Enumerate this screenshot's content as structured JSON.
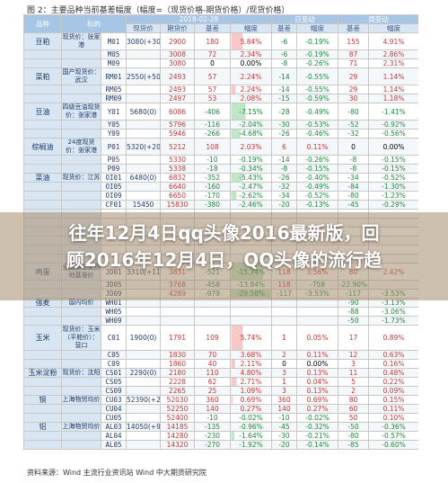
{
  "caption": "图 2：主要品种当前基差幅度（幅度=（现货价格-期货价格）/现货价格）",
  "headers": {
    "variety": "品种",
    "label": "标的",
    "date": "2018-02-28",
    "daily": "日变动",
    "weekly": "周变动",
    "spot": "现货价",
    "futures": "期货价",
    "basis": "基差",
    "amplitude": "幅度"
  },
  "rows": [
    {
      "cat": "豆粕",
      "desc": "现货价：张家港",
      "code": "M01",
      "spot": "3080",
      "spot_chg": "(+30)",
      "fut": "2900",
      "basis": "180",
      "amp": "5.84%",
      "dbasis": "-6",
      "damp": "-0.19%",
      "wbasis": "155",
      "wamp": "4.91%"
    },
    {
      "cat": "",
      "desc": "",
      "code": "M05",
      "spot": "",
      "spot_chg": "",
      "fut": "3008",
      "basis": "72",
      "amp": "2.34%",
      "dbasis": "-6",
      "damp": "-0.19%",
      "wbasis": "87",
      "wamp": "2.86%"
    },
    {
      "cat": "",
      "desc": "",
      "code": "M09",
      "spot": "",
      "spot_chg": "",
      "fut": "3080",
      "basis": "0",
      "amp": "0.00%",
      "dbasis": "-8",
      "damp": "-0.26%",
      "wbasis": "71",
      "wamp": "2.31%"
    },
    {
      "cat": "菜粕",
      "desc": "国产现货价：武汉",
      "code": "RM01",
      "spot": "2550",
      "spot_chg": "(+50)",
      "fut": "2493",
      "basis": "57",
      "amp": "2.24%",
      "dbasis": "-14",
      "damp": "-0.55%",
      "wbasis": "29",
      "wamp": "1.14%"
    },
    {
      "cat": "",
      "desc": "",
      "code": "RM05",
      "spot": "",
      "spot_chg": "",
      "fut": "2493",
      "basis": "57",
      "amp": "2.24%",
      "dbasis": "-14",
      "damp": "-0.55%",
      "wbasis": "29",
      "wamp": "1.14%"
    },
    {
      "cat": "",
      "desc": "",
      "code": "RM09",
      "spot": "",
      "spot_chg": "",
      "fut": "2497",
      "basis": "53",
      "amp": "2.08%",
      "dbasis": "-15",
      "damp": "-0.59%",
      "wbasis": "30",
      "wamp": "1.18%"
    },
    {
      "cat": "豆油",
      "desc": "四级豆油现货价：张家港",
      "code": "Y01",
      "spot": "5680",
      "spot_chg": "(0)",
      "fut": "6086",
      "basis": "-406",
      "amp": "-7.15%",
      "dbasis": "-28",
      "damp": "-0.49%",
      "wbasis": "-80",
      "wamp": "-1.41%"
    },
    {
      "cat": "",
      "desc": "",
      "code": "Y05",
      "spot": "",
      "spot_chg": "",
      "fut": "5796",
      "basis": "-116",
      "amp": "-2.04%",
      "dbasis": "-30",
      "damp": "-0.53%",
      "wbasis": "-52",
      "wamp": "-0.92%"
    },
    {
      "cat": "",
      "desc": "",
      "code": "Y09",
      "spot": "",
      "spot_chg": "",
      "fut": "5946",
      "basis": "-266",
      "amp": "-4.68%",
      "dbasis": "-26",
      "damp": "-0.46%",
      "wbasis": "-32",
      "wamp": "-0.56%"
    },
    {
      "cat": "棕榈油",
      "desc": "24度现货价：张家港",
      "code": "P01",
      "spot": "5320",
      "spot_chg": "(+20)",
      "fut": "5212",
      "basis": "108",
      "amp": "2.03%",
      "dbasis": "6",
      "damp": "0.11%",
      "wbasis": "0",
      "wamp": "0.00%"
    },
    {
      "cat": "",
      "desc": "",
      "code": "P05",
      "spot": "",
      "spot_chg": "",
      "fut": "5330",
      "basis": "-10",
      "amp": "-0.19%",
      "dbasis": "-14",
      "damp": "-0.26%",
      "wbasis": "-8",
      "wamp": "-0.15%"
    },
    {
      "cat": "",
      "desc": "",
      "code": "P09",
      "spot": "",
      "spot_chg": "",
      "fut": "5338",
      "basis": "-18",
      "amp": "-0.34%",
      "dbasis": "-8",
      "damp": "-0.15%",
      "wbasis": "-8",
      "wamp": "-0.15%"
    },
    {
      "cat": "菜油",
      "desc": "现货价：江苏",
      "code": "OI01",
      "spot": "6480",
      "spot_chg": "(0)",
      "fut": "6832",
      "basis": "-352",
      "amp": "-5.43%",
      "dbasis": "-26",
      "damp": "-0.40%",
      "wbasis": "-34",
      "wamp": "-0.52%"
    },
    {
      "cat": "",
      "desc": "",
      "code": "OI05",
      "spot": "",
      "spot_chg": "",
      "fut": "6640",
      "basis": "-160",
      "amp": "-2.47%",
      "dbasis": "-32",
      "damp": "-0.49%",
      "wbasis": "-84",
      "wamp": "-1.30%"
    },
    {
      "cat": "",
      "desc": "",
      "code": "OI09",
      "spot": "",
      "spot_chg": "",
      "fut": "6650",
      "basis": "-170",
      "amp": "-2.62%",
      "dbasis": "-34",
      "damp": "-0.52%",
      "wbasis": "-80",
      "wamp": "-1.23%"
    },
    {
      "cat": "",
      "desc": "",
      "code": "CF01",
      "spot": "15450",
      "spot_chg": "",
      "fut": "15830",
      "basis": "-380",
      "amp": "-2.46%",
      "dbasis": "-20",
      "damp": "-0.13%",
      "wbasis": "-45",
      "wamp": "-0.29%"
    },
    {
      "cat": "",
      "desc": "",
      "code": "",
      "spot": "",
      "spot_chg": "",
      "fut": "",
      "basis": "",
      "amp": "",
      "dbasis": "",
      "damp": "",
      "wbasis": "",
      "wamp": ""
    },
    {
      "cat": "",
      "desc": "",
      "code": "",
      "spot": "",
      "spot_chg": "",
      "fut": "",
      "basis": "",
      "amp": "",
      "dbasis": "",
      "damp": "",
      "wbasis": "",
      "wamp": ""
    },
    {
      "cat": "",
      "desc": "",
      "code": "",
      "spot": "",
      "spot_chg": "",
      "fut": "",
      "basis": "",
      "amp": "",
      "dbasis": "",
      "damp": "",
      "wbasis": "",
      "wamp": ""
    },
    {
      "cat": "",
      "desc": "",
      "code": "",
      "spot": "",
      "spot_chg": "",
      "fut": "",
      "basis": "",
      "amp": "",
      "dbasis": "",
      "damp": "",
      "wbasis": "",
      "wamp": ""
    },
    {
      "cat": "",
      "desc": "",
      "code": "",
      "spot": "",
      "spot_chg": "",
      "fut": "",
      "basis": "",
      "amp": "",
      "dbasis": "",
      "damp": "",
      "wbasis": "",
      "wamp": ""
    },
    {
      "cat": "",
      "desc": "",
      "code": "",
      "spot": "",
      "spot_chg": "",
      "fut": "",
      "basis": "",
      "amp": "",
      "dbasis": "",
      "damp": "",
      "wbasis": "",
      "wamp": ""
    },
    {
      "cat": "鸡蛋",
      "desc": "全国最低交割地基准价",
      "code": "JD01",
      "spot": "3310",
      "spot_chg": "(+110)",
      "fut": "3831",
      "basis": "-521",
      "amp": "-15.74%",
      "dbasis": "118",
      "damp": "3.56%",
      "wbasis": "80",
      "wamp": "2.42%"
    },
    {
      "cat": "",
      "desc": "",
      "code": "JD05",
      "spot": "",
      "spot_chg": "",
      "fut": "3768",
      "basis": "-458",
      "amp": "-13.84%",
      "dbasis": "118",
      "damp": "-758",
      "wbasis": "-22.90%",
      "wamp": ""
    },
    {
      "cat": "",
      "desc": "",
      "code": "JD09",
      "spot": "",
      "spot_chg": "",
      "fut": "4289",
      "basis": "-979",
      "amp": "-29.58%",
      "dbasis": "-117",
      "damp": "-3.53%",
      "wbasis": "-117",
      "wamp": "-3.53%"
    },
    {
      "cat": "强麦",
      "desc": "国内均价",
      "code": "WH01",
      "spot": "",
      "spot_chg": "",
      "fut": "",
      "basis": "",
      "amp": "",
      "dbasis": "",
      "damp": "",
      "wbasis": "-90",
      "wamp": "-3.13%"
    },
    {
      "cat": "",
      "desc": "",
      "code": "WH05",
      "spot": "",
      "spot_chg": "",
      "fut": "",
      "basis": "",
      "amp": "",
      "dbasis": "",
      "damp": "",
      "wbasis": "-88",
      "wamp": "-3.06%"
    },
    {
      "cat": "",
      "desc": "",
      "code": "WH09",
      "spot": "",
      "spot_chg": "",
      "fut": "",
      "basis": "",
      "amp": "",
      "dbasis": "",
      "damp": "",
      "wbasis": "-50",
      "wamp": "-1.73%"
    },
    {
      "cat": "玉米",
      "desc": "现货价：玉米（平舱价）：营口",
      "code": "C01",
      "spot": "1900",
      "spot_chg": "(0)",
      "fut": "1791",
      "basis": "109",
      "amp": "5.74%",
      "dbasis": "1",
      "damp": "0.05%",
      "wbasis": "17",
      "wamp": "0.89%"
    },
    {
      "cat": "",
      "desc": "",
      "code": "C05",
      "spot": "",
      "spot_chg": "",
      "fut": "1830",
      "basis": "70",
      "amp": "3.68%",
      "dbasis": "2",
      "damp": "0.11%",
      "wbasis": "12",
      "wamp": "0.63%"
    },
    {
      "cat": "",
      "desc": "",
      "code": "C09",
      "spot": "",
      "spot_chg": "",
      "fut": "1860",
      "basis": "40",
      "amp": "2.11%",
      "dbasis": "0",
      "damp": "0.00%",
      "wbasis": "3",
      "wamp": "0.16%"
    },
    {
      "cat": "玉米淀粉",
      "desc": "现货价：沈阳",
      "code": "CS01",
      "spot": "2290",
      "spot_chg": "(0)",
      "fut": "2180",
      "basis": "110",
      "amp": "4.80%",
      "dbasis": "3",
      "damp": "0.13%",
      "wbasis": "11",
      "wamp": "0.48%"
    },
    {
      "cat": "",
      "desc": "",
      "code": "CS05",
      "spot": "",
      "spot_chg": "",
      "fut": "2228",
      "basis": "62",
      "amp": "2.71%",
      "dbasis": "1",
      "damp": "0.04%",
      "wbasis": "5",
      "wamp": "0.22%"
    },
    {
      "cat": "",
      "desc": "",
      "code": "CS09",
      "spot": "",
      "spot_chg": "",
      "fut": "2265",
      "basis": "25",
      "amp": "1.09%",
      "dbasis": "3",
      "damp": "0.13%",
      "wbasis": "2",
      "wamp": "0.09%"
    },
    {
      "cat": "铜",
      "desc": "上海物贸均价",
      "code": "CU03",
      "spot": "52390",
      "spot_chg": "(+200)",
      "fut": "52030",
      "basis": "360",
      "amp": "0.69%",
      "dbasis": "360",
      "damp": "0.69%",
      "wbasis": "80",
      "wamp": "0.15%"
    },
    {
      "cat": "",
      "desc": "",
      "code": "CU04",
      "spot": "",
      "spot_chg": "",
      "fut": "52250",
      "basis": "140",
      "amp": "0.27%",
      "dbasis": "140",
      "damp": "0.27%",
      "wbasis": "60",
      "wamp": "0.11%"
    },
    {
      "cat": "",
      "desc": "",
      "code": "CU05",
      "spot": "",
      "spot_chg": "",
      "fut": "52400",
      "basis": "-10",
      "amp": "-0.02%",
      "dbasis": "-10",
      "damp": "-0.02%",
      "wbasis": "50",
      "wamp": "0.10%"
    },
    {
      "cat": "铝",
      "desc": "上海物贸均价",
      "code": "AL03",
      "spot": "14050",
      "spot_chg": "(+90)",
      "fut": "14185",
      "basis": "-135",
      "amp": "-0.96%",
      "dbasis": "-45",
      "damp": "-0.32%",
      "wbasis": "-50",
      "wamp": "-0.36%"
    },
    {
      "cat": "",
      "desc": "",
      "code": "AL04",
      "spot": "",
      "spot_chg": "",
      "fut": "14280",
      "basis": "-230",
      "amp": "-1.64%",
      "dbasis": "-30",
      "damp": "-0.21%",
      "wbasis": "-80",
      "wamp": "-0.57%"
    },
    {
      "cat": "",
      "desc": "",
      "code": "AL05",
      "spot": "",
      "spot_chg": "",
      "fut": "14320",
      "basis": "-270",
      "amp": "-1.92%",
      "dbasis": "-20",
      "damp": "-0.14%",
      "wbasis": "-85",
      "wamp": "-0.60%"
    }
  ],
  "headline": {
    "line1": "往年12月4日qq头像2016最新版，回",
    "line2": "顾2016年12月4日，QQ头像的流行趋"
  },
  "source": "资料来源：Wind  主流行业资讯站  Wind  中大期货研究院",
  "colors": {
    "header": "#a7c5e4",
    "positive": "#c93434",
    "negative": "#1a8a3a"
  }
}
